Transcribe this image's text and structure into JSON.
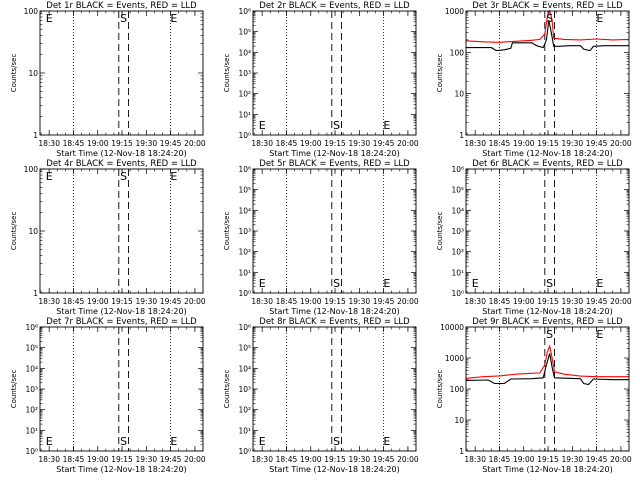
{
  "chart_data": [
    {
      "type": "line",
      "title": "Det 1r BLACK = Events, RED = LLD",
      "xlabel": "Start Time (12-Nov-18 18:24:20)",
      "ylabel": "Counts/sec",
      "y_scale": "log",
      "ylim": [
        1,
        100
      ],
      "y_ticks": [
        {
          "v": 1,
          "label": "1"
        },
        {
          "v": 10,
          "label": "10"
        },
        {
          "v": 100,
          "label": "100"
        }
      ],
      "x_tick_labels": [
        "18:30",
        "18:45",
        "19:00",
        "19:15",
        "19:30",
        "19:45",
        "20:00"
      ],
      "dashed_lines": [
        "19:13",
        "19:19"
      ],
      "dotted_lines": [
        "18:45",
        "19:45"
      ],
      "markers": [
        {
          "label": "E",
          "time": "18:30",
          "y_pos": "top"
        },
        {
          "label": "S",
          "time": "19:16",
          "y_pos": "top"
        },
        {
          "label": "E",
          "time": "19:47",
          "y_pos": "top"
        }
      ],
      "series": []
    },
    {
      "type": "line",
      "title": "Det 2r BLACK = Events, RED = LLD",
      "xlabel": "Start Time (12-Nov-18 18:24:20)",
      "ylabel": "Counts/sec",
      "y_scale": "log",
      "ylim": [
        1,
        1000000
      ],
      "y_ticks": [
        {
          "v": 1,
          "label": "10⁰"
        },
        {
          "v": 10,
          "label": "10¹"
        },
        {
          "v": 100,
          "label": "10²"
        },
        {
          "v": 1000,
          "label": "10³"
        },
        {
          "v": 10000,
          "label": "10⁴"
        },
        {
          "v": 100000,
          "label": "10⁵"
        },
        {
          "v": 1000000,
          "label": "10⁶"
        }
      ],
      "x_tick_labels": [
        "18:30",
        "18:45",
        "19:00",
        "19:15",
        "19:30",
        "19:45",
        "20:00"
      ],
      "dashed_lines": [
        "19:13",
        "19:19"
      ],
      "dotted_lines": [
        "18:45",
        "19:45"
      ],
      "markers": [
        {
          "label": "E",
          "time": "18:30",
          "y_pos": "bottom"
        },
        {
          "label": "S",
          "time": "19:16",
          "y_pos": "bottom"
        },
        {
          "label": "E",
          "time": "19:47",
          "y_pos": "bottom"
        }
      ],
      "series": []
    },
    {
      "type": "line",
      "title": "Det 3r BLACK = Events, RED = LLD",
      "xlabel": "Start Time (12-Nov-18 18:24:20)",
      "ylabel": "Counts/sec",
      "y_scale": "log",
      "ylim": [
        1,
        1000
      ],
      "y_ticks": [
        {
          "v": 1,
          "label": "1"
        },
        {
          "v": 10,
          "label": "10"
        },
        {
          "v": 100,
          "label": "100"
        },
        {
          "v": 1000,
          "label": "1000"
        }
      ],
      "x_tick_labels": [
        "18:30",
        "18:45",
        "19:00",
        "19:15",
        "19:30",
        "19:45",
        "20:00"
      ],
      "dashed_lines": [
        "19:13",
        "19:19"
      ],
      "dotted_lines": [
        "18:45",
        "19:45"
      ],
      "markers": [
        {
          "label": "S",
          "time": "19:16",
          "y_pos": "top"
        },
        {
          "label": "E",
          "time": "19:47",
          "y_pos": "top"
        }
      ],
      "series": [
        {
          "color": "#000000",
          "points": [
            [
              "18:24",
              130
            ],
            [
              "18:40",
              130
            ],
            [
              "18:43",
              110
            ],
            [
              "18:48",
              115
            ],
            [
              "18:52",
              125
            ],
            [
              "18:53",
              170
            ],
            [
              "19:05",
              170
            ],
            [
              "19:08",
              145
            ],
            [
              "19:12",
              130
            ],
            [
              "19:14",
              200
            ],
            [
              "19:15.5",
              600
            ],
            [
              "19:17",
              300
            ],
            [
              "19:18.5",
              140
            ],
            [
              "19:22",
              140
            ],
            [
              "19:28",
              145
            ],
            [
              "19:35",
              145
            ],
            [
              "19:37",
              120
            ],
            [
              "19:41",
              110
            ],
            [
              "19:43",
              140
            ],
            [
              "19:50",
              145
            ],
            [
              "20:05",
              145
            ]
          ]
        },
        {
          "color": "#ff0000",
          "points": [
            [
              "18:24",
              190
            ],
            [
              "18:35",
              180
            ],
            [
              "18:45",
              175
            ],
            [
              "18:55",
              185
            ],
            [
              "19:05",
              195
            ],
            [
              "19:10",
              205
            ],
            [
              "19:13",
              280
            ],
            [
              "19:14.5",
              700
            ],
            [
              "19:16",
              1400
            ],
            [
              "19:17.5",
              600
            ],
            [
              "19:18.5",
              220
            ],
            [
              "19:25",
              205
            ],
            [
              "19:35",
              200
            ],
            [
              "19:45",
              210
            ],
            [
              "19:55",
              200
            ],
            [
              "20:05",
              205
            ]
          ]
        }
      ]
    },
    {
      "type": "line",
      "title": "Det 4r BLACK = Events, RED = LLD",
      "xlabel": "Start Time (12-Nov-18 18:24:20)",
      "ylabel": "Counts/sec",
      "y_scale": "log",
      "ylim": [
        1,
        100
      ],
      "y_ticks": [
        {
          "v": 1,
          "label": "1"
        },
        {
          "v": 10,
          "label": "10"
        },
        {
          "v": 100,
          "label": "100"
        }
      ],
      "x_tick_labels": [
        "18:30",
        "18:45",
        "19:00",
        "19:15",
        "19:30",
        "19:45",
        "20:00"
      ],
      "dashed_lines": [
        "19:13",
        "19:19"
      ],
      "dotted_lines": [
        "18:45",
        "19:45"
      ],
      "markers": [
        {
          "label": "E",
          "time": "18:30",
          "y_pos": "top"
        },
        {
          "label": "S",
          "time": "19:16",
          "y_pos": "top"
        },
        {
          "label": "E",
          "time": "19:47",
          "y_pos": "top"
        }
      ],
      "series": []
    },
    {
      "type": "line",
      "title": "Det 5r BLACK = Events, RED = LLD",
      "xlabel": "Start Time (12-Nov-18 18:24:20)",
      "ylabel": "Counts/sec",
      "y_scale": "log",
      "ylim": [
        1,
        1000000
      ],
      "y_ticks": [
        {
          "v": 1,
          "label": "10⁰"
        },
        {
          "v": 10,
          "label": "10¹"
        },
        {
          "v": 100,
          "label": "10²"
        },
        {
          "v": 1000,
          "label": "10³"
        },
        {
          "v": 10000,
          "label": "10⁴"
        },
        {
          "v": 100000,
          "label": "10⁵"
        },
        {
          "v": 1000000,
          "label": "10⁶"
        }
      ],
      "x_tick_labels": [
        "18:30",
        "18:45",
        "19:00",
        "19:15",
        "19:30",
        "19:45",
        "20:00"
      ],
      "dashed_lines": [
        "19:13",
        "19:19"
      ],
      "dotted_lines": [
        "18:45",
        "19:45"
      ],
      "markers": [
        {
          "label": "E",
          "time": "18:30",
          "y_pos": "bottom"
        },
        {
          "label": "S",
          "time": "19:16",
          "y_pos": "bottom"
        },
        {
          "label": "E",
          "time": "19:47",
          "y_pos": "bottom"
        }
      ],
      "series": []
    },
    {
      "type": "line",
      "title": "Det 6r BLACK = Events, RED = LLD",
      "xlabel": "Start Time (12-Nov-18 18:24:20)",
      "ylabel": "Counts/sec",
      "y_scale": "log",
      "ylim": [
        1,
        1000000
      ],
      "y_ticks": [
        {
          "v": 1,
          "label": "10⁰"
        },
        {
          "v": 10,
          "label": "10¹"
        },
        {
          "v": 100,
          "label": "10²"
        },
        {
          "v": 1000,
          "label": "10³"
        },
        {
          "v": 10000,
          "label": "10⁴"
        },
        {
          "v": 100000,
          "label": "10⁵"
        },
        {
          "v": 1000000,
          "label": "10⁶"
        }
      ],
      "x_tick_labels": [
        "18:30",
        "18:45",
        "19:00",
        "19:15",
        "19:30",
        "19:45",
        "20:00"
      ],
      "dashed_lines": [
        "19:13",
        "19:19"
      ],
      "dotted_lines": [
        "18:45",
        "19:45"
      ],
      "markers": [
        {
          "label": "E",
          "time": "18:30",
          "y_pos": "bottom"
        },
        {
          "label": "S",
          "time": "19:16",
          "y_pos": "bottom"
        },
        {
          "label": "E",
          "time": "19:47",
          "y_pos": "bottom"
        }
      ],
      "series": []
    },
    {
      "type": "line",
      "title": "Det 7r BLACK = Events, RED = LLD",
      "xlabel": "Start Time (12-Nov-18 18:24:20)",
      "ylabel": "Counts/sec",
      "y_scale": "log",
      "ylim": [
        1,
        1000000
      ],
      "y_ticks": [
        {
          "v": 1,
          "label": "10⁰"
        },
        {
          "v": 10,
          "label": "10¹"
        },
        {
          "v": 100,
          "label": "10²"
        },
        {
          "v": 1000,
          "label": "10³"
        },
        {
          "v": 10000,
          "label": "10⁴"
        },
        {
          "v": 100000,
          "label": "10⁵"
        },
        {
          "v": 1000000,
          "label": "10⁶"
        }
      ],
      "x_tick_labels": [
        "18:30",
        "18:45",
        "19:00",
        "19:15",
        "19:30",
        "19:45",
        "20:00"
      ],
      "dashed_lines": [
        "19:13",
        "19:19"
      ],
      "dotted_lines": [
        "18:45",
        "19:45"
      ],
      "markers": [
        {
          "label": "E",
          "time": "18:30",
          "y_pos": "bottom"
        },
        {
          "label": "S",
          "time": "19:16",
          "y_pos": "bottom"
        },
        {
          "label": "E",
          "time": "19:47",
          "y_pos": "bottom"
        }
      ],
      "series": []
    },
    {
      "type": "line",
      "title": "Det 8r BLACK = Events, RED = LLD",
      "xlabel": "Start Time (12-Nov-18 18:24:20)",
      "ylabel": "Counts/sec",
      "y_scale": "log",
      "ylim": [
        1,
        1000000
      ],
      "y_ticks": [
        {
          "v": 1,
          "label": "10⁰"
        },
        {
          "v": 10,
          "label": "10¹"
        },
        {
          "v": 100,
          "label": "10²"
        },
        {
          "v": 1000,
          "label": "10³"
        },
        {
          "v": 10000,
          "label": "10⁴"
        },
        {
          "v": 100000,
          "label": "10⁵"
        },
        {
          "v": 1000000,
          "label": "10⁶"
        }
      ],
      "x_tick_labels": [
        "18:30",
        "18:45",
        "19:00",
        "19:15",
        "19:30",
        "19:45",
        "20:00"
      ],
      "dashed_lines": [
        "19:13",
        "19:19"
      ],
      "dotted_lines": [
        "18:45",
        "19:45"
      ],
      "markers": [
        {
          "label": "E",
          "time": "18:30",
          "y_pos": "bottom"
        },
        {
          "label": "S",
          "time": "19:16",
          "y_pos": "bottom"
        },
        {
          "label": "E",
          "time": "19:47",
          "y_pos": "bottom"
        }
      ],
      "series": []
    },
    {
      "type": "line",
      "title": "Det 9r BLACK = Events, RED = LLD",
      "xlabel": "Start Time (12-Nov-18 18:24:20)",
      "ylabel": "Counts/sec",
      "y_scale": "log",
      "ylim": [
        1,
        10000
      ],
      "y_ticks": [
        {
          "v": 1,
          "label": "1"
        },
        {
          "v": 10,
          "label": "10"
        },
        {
          "v": 100,
          "label": "100"
        },
        {
          "v": 1000,
          "label": "1000"
        },
        {
          "v": 10000,
          "label": "10000"
        }
      ],
      "x_tick_labels": [
        "18:30",
        "18:45",
        "19:00",
        "19:15",
        "19:30",
        "19:45",
        "20:00"
      ],
      "dashed_lines": [
        "19:13",
        "19:19"
      ],
      "dotted_lines": [
        "18:45",
        "19:45"
      ],
      "markers": [
        {
          "label": "S",
          "time": "19:16",
          "y_pos": "top"
        },
        {
          "label": "E",
          "time": "19:47",
          "y_pos": "top"
        }
      ],
      "series": [
        {
          "color": "#000000",
          "points": [
            [
              "18:24",
              190
            ],
            [
              "18:38",
              195
            ],
            [
              "18:42",
              150
            ],
            [
              "18:48",
              150
            ],
            [
              "18:52",
              210
            ],
            [
              "19:05",
              215
            ],
            [
              "19:12",
              230
            ],
            [
              "19:14",
              600
            ],
            [
              "19:16",
              1400
            ],
            [
              "19:17.5",
              500
            ],
            [
              "19:19",
              230
            ],
            [
              "19:30",
              220
            ],
            [
              "19:35",
              215
            ],
            [
              "19:37",
              150
            ],
            [
              "19:40",
              140
            ],
            [
              "19:43",
              210
            ],
            [
              "19:55",
              200
            ],
            [
              "20:05",
              200
            ]
          ]
        },
        {
          "color": "#ff0000",
          "points": [
            [
              "18:24",
              220
            ],
            [
              "18:35",
              250
            ],
            [
              "18:45",
              265
            ],
            [
              "18:55",
              300
            ],
            [
              "19:05",
              320
            ],
            [
              "19:10",
              330
            ],
            [
              "19:13",
              600
            ],
            [
              "19:14.5",
              1500
            ],
            [
              "19:16",
              2400
            ],
            [
              "19:17.5",
              1000
            ],
            [
              "19:19",
              360
            ],
            [
              "19:25",
              300
            ],
            [
              "19:35",
              260
            ],
            [
              "19:45",
              250
            ],
            [
              "19:55",
              250
            ],
            [
              "20:05",
              250
            ]
          ]
        }
      ]
    }
  ]
}
